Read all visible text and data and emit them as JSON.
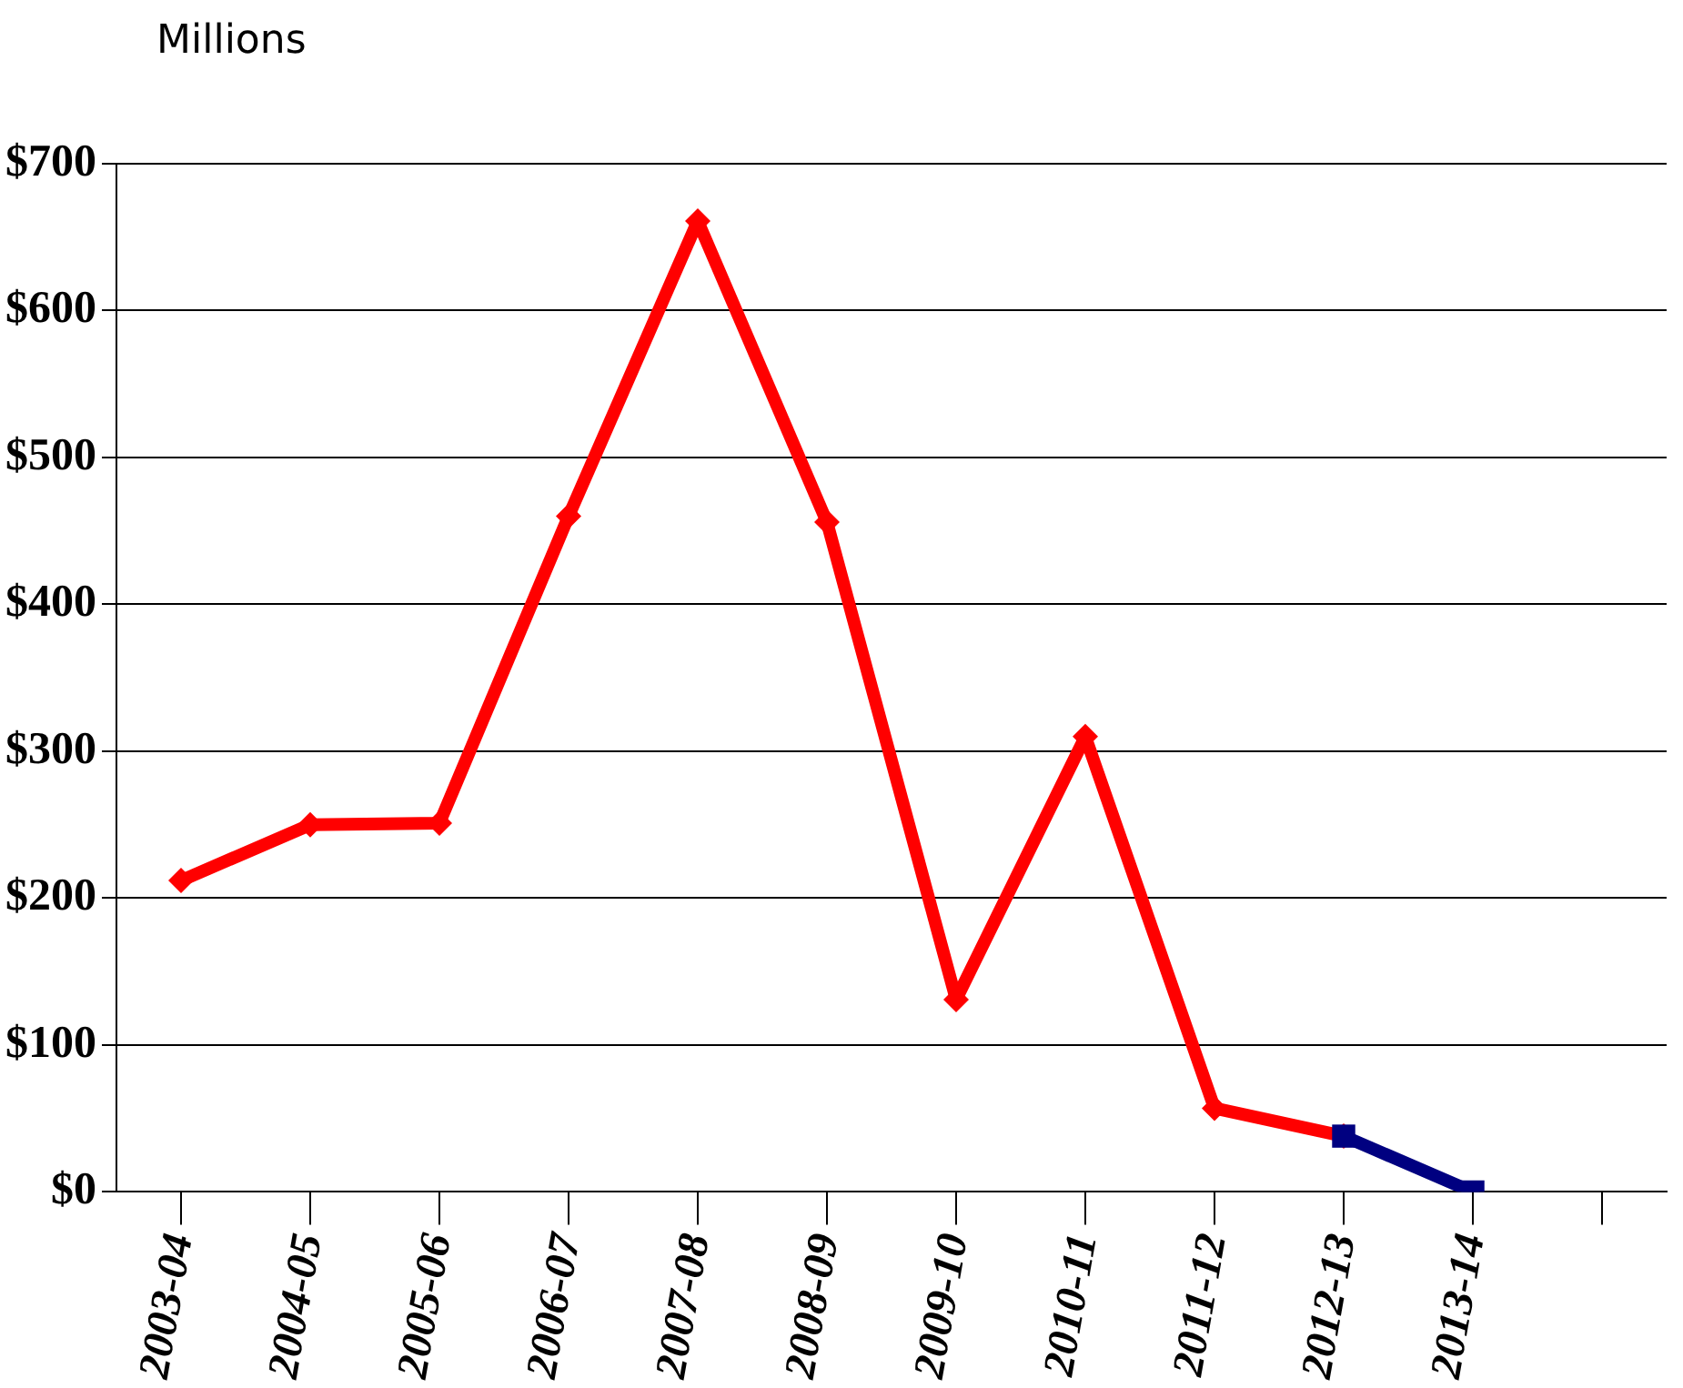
{
  "chart_data": {
    "type": "line",
    "ylabel": "Millions",
    "categories": [
      "2003-04",
      "2004-05",
      "2005-06",
      "2006-07",
      "2007-08",
      "2008-09",
      "2009-10",
      "2010-11",
      "2011-12",
      "2012-13",
      "2013-14",
      null
    ],
    "series": [
      {
        "color": "#ff0000",
        "marker": "diamond",
        "values": [
          212,
          250,
          251,
          460,
          661,
          456,
          131,
          310,
          57,
          38,
          null,
          null
        ]
      },
      {
        "color": "#000080",
        "marker": "square",
        "values": [
          null,
          null,
          null,
          null,
          null,
          null,
          null,
          null,
          null,
          38,
          0,
          null
        ]
      }
    ],
    "ylim": [
      0,
      700
    ],
    "yticks": [
      {
        "value": 0,
        "label": "$0"
      },
      {
        "value": 100,
        "label": "$100"
      },
      {
        "value": 200,
        "label": "$200"
      },
      {
        "value": 300,
        "label": "$300"
      },
      {
        "value": 400,
        "label": "$400"
      },
      {
        "value": 500,
        "label": "$500"
      },
      {
        "value": 600,
        "label": "$600"
      },
      {
        "value": 700,
        "label": "$700"
      }
    ],
    "grid": "y",
    "legend": false,
    "line_style": "solid"
  }
}
